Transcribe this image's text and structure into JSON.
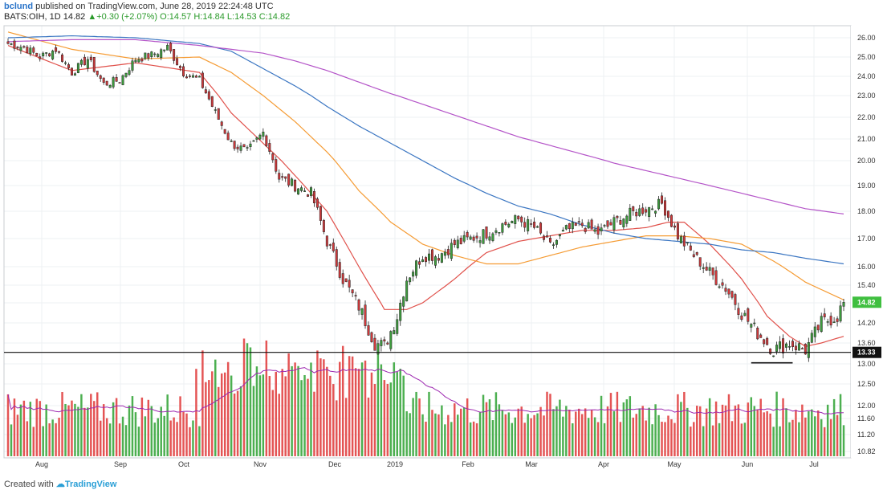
{
  "header": {
    "user": "bclund",
    "published": "published on TradingView.com, June 28, 2019 22:24:48 UTC",
    "symbol": "BATS:OIH, 1D",
    "price": "14.82",
    "change": "+0.30 (+2.07%)",
    "ohlc": "O:14.57 H:14.84 L:14.53 C:14.82"
  },
  "footer": {
    "created_with": "Created with",
    "brand": "TradingView"
  },
  "colors": {
    "up": "#3d9c3d",
    "down": "#d0393b",
    "sma_red": "#e0504a",
    "sma_orange": "#f59b33",
    "sma_blue": "#3b76c2",
    "sma_purple": "#b454c8",
    "vol_up": "#4caf50",
    "vol_down": "#e45454",
    "vol_ma": "#9c27b0"
  },
  "chart_data": {
    "type": "candlestick",
    "y_axis": {
      "price_ticks": [
        "26.00",
        "25.00",
        "24.00",
        "23.00",
        "22.00",
        "21.00",
        "20.00",
        "19.00",
        "18.00",
        "17.00",
        "16.00",
        "15.40",
        "14.80",
        "14.20",
        "13.60",
        "13.00",
        "12.50",
        "12.00",
        "11.60",
        "11.20",
        "10.82"
      ],
      "range_approx": [
        10.8,
        26.4
      ]
    },
    "x_axis": {
      "labels": [
        "Aug",
        "Sep",
        "Oct",
        "Nov",
        "Dec",
        "2019",
        "Feb",
        "Mar",
        "Apr",
        "May",
        "Jun",
        "Jul"
      ]
    },
    "last_price_label": "14.82",
    "support_level": {
      "label": "13.33",
      "value": 13.33
    },
    "price_series_close": [
      [
        0,
        25.7
      ],
      [
        5,
        25.5
      ],
      [
        10,
        25.0
      ],
      [
        15,
        25.4
      ],
      [
        20,
        24.2
      ],
      [
        25,
        24.9
      ],
      [
        30,
        23.6
      ],
      [
        35,
        23.8
      ],
      [
        40,
        24.9
      ],
      [
        45,
        25.1
      ],
      [
        50,
        25.5
      ],
      [
        55,
        24.2
      ],
      [
        60,
        23.8
      ],
      [
        65,
        22.2
      ],
      [
        70,
        20.8
      ],
      [
        75,
        20.4
      ],
      [
        80,
        21.3
      ],
      [
        85,
        19.3
      ],
      [
        90,
        19.0
      ],
      [
        95,
        18.7
      ],
      [
        100,
        16.9
      ],
      [
        105,
        15.6
      ],
      [
        110,
        14.7
      ],
      [
        115,
        13.6
      ],
      [
        118,
        13.5
      ],
      [
        122,
        14.4
      ],
      [
        125,
        15.6
      ],
      [
        130,
        16.4
      ],
      [
        135,
        16.4
      ],
      [
        140,
        16.8
      ],
      [
        145,
        17.0
      ],
      [
        150,
        17.2
      ],
      [
        155,
        17.5
      ],
      [
        160,
        17.7
      ],
      [
        165,
        17.4
      ],
      [
        170,
        16.7
      ],
      [
        175,
        17.3
      ],
      [
        180,
        17.5
      ],
      [
        185,
        17.2
      ],
      [
        190,
        17.6
      ],
      [
        195,
        17.9
      ],
      [
        200,
        18.1
      ],
      [
        205,
        18.3
      ],
      [
        210,
        17.1
      ],
      [
        215,
        16.4
      ],
      [
        220,
        15.8
      ],
      [
        225,
        15.3
      ],
      [
        230,
        14.5
      ],
      [
        235,
        13.9
      ],
      [
        240,
        13.4
      ],
      [
        245,
        13.6
      ],
      [
        250,
        13.4
      ],
      [
        255,
        14.2
      ],
      [
        260,
        14.4
      ],
      [
        262,
        14.82
      ]
    ],
    "moving_averages": [
      {
        "name": "",
        "color_key": "sma_red",
        "points": [
          [
            0,
            25.6
          ],
          [
            20,
            24.3
          ],
          [
            40,
            24.7
          ],
          [
            60,
            24.2
          ],
          [
            70,
            22.2
          ],
          [
            80,
            20.8
          ],
          [
            90,
            19.4
          ],
          [
            100,
            18.0
          ],
          [
            110,
            16.0
          ],
          [
            118,
            14.6
          ],
          [
            125,
            14.6
          ],
          [
            130,
            14.8
          ],
          [
            140,
            15.6
          ],
          [
            150,
            16.5
          ],
          [
            160,
            16.9
          ],
          [
            170,
            17.1
          ],
          [
            180,
            17.3
          ],
          [
            190,
            17.3
          ],
          [
            200,
            17.4
          ],
          [
            207,
            17.6
          ],
          [
            212,
            17.6
          ],
          [
            220,
            16.8
          ],
          [
            230,
            15.6
          ],
          [
            238,
            14.4
          ],
          [
            245,
            13.8
          ],
          [
            250,
            13.5
          ],
          [
            255,
            13.6
          ],
          [
            262,
            13.8
          ]
        ]
      },
      {
        "name": "",
        "color_key": "sma_orange",
        "points": [
          [
            0,
            26.3
          ],
          [
            20,
            25.4
          ],
          [
            40,
            24.9
          ],
          [
            60,
            25.0
          ],
          [
            70,
            24.2
          ],
          [
            80,
            23.0
          ],
          [
            90,
            21.8
          ],
          [
            100,
            20.4
          ],
          [
            110,
            18.8
          ],
          [
            120,
            17.6
          ],
          [
            130,
            16.8
          ],
          [
            140,
            16.4
          ],
          [
            150,
            16.1
          ],
          [
            160,
            16.1
          ],
          [
            170,
            16.4
          ],
          [
            180,
            16.7
          ],
          [
            190,
            16.9
          ],
          [
            200,
            17.1
          ],
          [
            210,
            17.1
          ],
          [
            220,
            17.0
          ],
          [
            230,
            16.8
          ],
          [
            240,
            16.2
          ],
          [
            250,
            15.5
          ],
          [
            262,
            14.9
          ]
        ]
      },
      {
        "name": "",
        "color_key": "sma_blue",
        "points": [
          [
            0,
            26.0
          ],
          [
            20,
            26.1
          ],
          [
            40,
            26.0
          ],
          [
            60,
            25.7
          ],
          [
            70,
            25.3
          ],
          [
            80,
            24.4
          ],
          [
            90,
            23.5
          ],
          [
            100,
            22.5
          ],
          [
            110,
            21.6
          ],
          [
            120,
            20.8
          ],
          [
            130,
            20.0
          ],
          [
            140,
            19.3
          ],
          [
            150,
            18.7
          ],
          [
            160,
            18.2
          ],
          [
            170,
            17.9
          ],
          [
            180,
            17.5
          ],
          [
            190,
            17.2
          ],
          [
            200,
            17.0
          ],
          [
            210,
            16.9
          ],
          [
            220,
            16.8
          ],
          [
            230,
            16.6
          ],
          [
            240,
            16.5
          ],
          [
            250,
            16.3
          ],
          [
            262,
            16.1
          ]
        ]
      },
      {
        "name": "",
        "color_key": "sma_purple",
        "points": [
          [
            0,
            25.8
          ],
          [
            20,
            25.9
          ],
          [
            40,
            25.9
          ],
          [
            60,
            25.6
          ],
          [
            70,
            25.4
          ],
          [
            80,
            25.2
          ],
          [
            90,
            24.8
          ],
          [
            100,
            24.3
          ],
          [
            110,
            23.7
          ],
          [
            120,
            23.1
          ],
          [
            130,
            22.6
          ],
          [
            140,
            22.1
          ],
          [
            150,
            21.6
          ],
          [
            160,
            21.1
          ],
          [
            170,
            20.7
          ],
          [
            180,
            20.3
          ],
          [
            190,
            19.9
          ],
          [
            200,
            19.6
          ],
          [
            210,
            19.3
          ],
          [
            220,
            19.0
          ],
          [
            230,
            18.7
          ],
          [
            240,
            18.4
          ],
          [
            250,
            18.1
          ],
          [
            262,
            17.9
          ]
        ]
      }
    ],
    "volume": {
      "visible": true,
      "note": "volume histogram colored by candle direction with moving average overlay"
    }
  }
}
